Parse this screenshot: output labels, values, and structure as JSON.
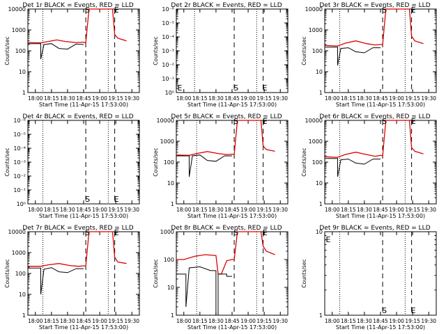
{
  "colors": {
    "events": "#000000",
    "lld": "#dd0000",
    "axis": "#000000",
    "background": "#ffffff"
  },
  "x_tick_labels": [
    "18:00",
    "18:15",
    "18:30",
    "18:45",
    "19:00",
    "19:15",
    "19:30"
  ],
  "x_label": "Start Time (11-Apr-15 17:53:00)",
  "y_label": "Counts/sec",
  "chart_data": [
    {
      "type": "line",
      "title": "Det 1r BLACK = Events, RED = LLD",
      "yscale": "log",
      "ylim": [
        1,
        10000
      ],
      "xlim": [
        "17:53",
        "19:37"
      ],
      "y_tick_labels": [
        "1",
        "10",
        "100",
        "1000",
        "10000"
      ],
      "dotted_lines_at": [
        "18:07",
        "19:08"
      ],
      "dashed_lines": [
        {
          "x": "18:47",
          "label": "S"
        },
        {
          "x": "19:14",
          "label": "E"
        }
      ],
      "series": [
        {
          "color": "red",
          "x": [
            "17:53",
            "18:05",
            "18:10",
            "18:20",
            "18:28",
            "18:38",
            "18:45",
            "18:47",
            "18:50",
            "19:12",
            "19:14",
            "19:17",
            "19:25"
          ],
          "values": [
            250,
            240,
            270,
            330,
            280,
            250,
            260,
            240,
            10000,
            10000,
            600,
            400,
            300
          ]
        },
        {
          "color": "black",
          "x": [
            "17:53",
            "18:05",
            "18:05",
            "18:08",
            "18:08",
            "18:15",
            "18:15",
            "18:22",
            "18:22",
            "18:30",
            "18:30",
            "18:38",
            "18:38",
            "18:45"
          ],
          "values": [
            220,
            220,
            40,
            200,
            200,
            220,
            220,
            130,
            130,
            120,
            120,
            210,
            210,
            200
          ]
        }
      ]
    },
    {
      "type": "line",
      "title": "Det 2r BLACK = Events, RED = LLD",
      "yscale": "log",
      "ylim": [
        1,
        1e-06
      ],
      "xlim": [
        "17:53",
        "19:37"
      ],
      "y_tick_labels": [
        "10⁰",
        "10⁻¹",
        "10⁻²",
        "10⁻³",
        "10⁻⁴",
        "10⁻⁵",
        "10⁻⁶"
      ],
      "dotted_lines_at": [
        "18:10",
        "19:08"
      ],
      "dashed_lines": [
        {
          "x": "18:47",
          "label": "S"
        },
        {
          "x": "19:14",
          "label": "E"
        }
      ],
      "extra_labels": [
        {
          "x": "17:54",
          "label": "E"
        }
      ],
      "series": []
    },
    {
      "type": "line",
      "title": "Det 3r BLACK = Events, RED = LLD",
      "yscale": "log",
      "ylim": [
        1,
        10000
      ],
      "xlim": [
        "17:53",
        "19:37"
      ],
      "y_tick_labels": [
        "1",
        "10",
        "100",
        "1000",
        "10000"
      ],
      "dotted_lines_at": [
        "18:07",
        "19:08"
      ],
      "dashed_lines": [
        {
          "x": "18:47",
          "label": "S"
        },
        {
          "x": "19:14",
          "label": "E"
        }
      ],
      "series": [
        {
          "color": "red",
          "x": [
            "17:53",
            "18:05",
            "18:12",
            "18:22",
            "18:32",
            "18:40",
            "18:45",
            "18:47",
            "18:50",
            "19:12",
            "19:14",
            "19:17",
            "19:25"
          ],
          "values": [
            180,
            170,
            230,
            300,
            220,
            190,
            200,
            200,
            10000,
            10000,
            500,
            300,
            220
          ]
        },
        {
          "color": "black",
          "x": [
            "17:53",
            "18:05",
            "18:05",
            "18:08",
            "18:08",
            "18:15",
            "18:15",
            "18:22",
            "18:22",
            "18:30",
            "18:30",
            "18:38",
            "18:38",
            "18:45"
          ],
          "values": [
            150,
            150,
            20,
            130,
            130,
            140,
            140,
            90,
            90,
            80,
            80,
            140,
            140,
            140
          ]
        }
      ]
    },
    {
      "type": "line",
      "title": "Det 4r BLACK = Events, RED = LLD",
      "yscale": "log",
      "ylim": [
        1,
        1e-06
      ],
      "xlim": [
        "17:53",
        "19:37"
      ],
      "y_tick_labels": [
        "10⁰",
        "10⁻¹",
        "10⁻²",
        "10⁻³",
        "10⁻⁴",
        "10⁻⁵",
        "10⁻⁶"
      ],
      "dotted_lines_at": [
        "18:07",
        "19:08"
      ],
      "dashed_lines": [
        {
          "x": "18:47",
          "label": "S"
        },
        {
          "x": "19:14",
          "label": "E"
        }
      ],
      "series": []
    },
    {
      "type": "line",
      "title": "Det 5r BLACK = Events, RED = LLD",
      "yscale": "log",
      "ylim": [
        1,
        10000
      ],
      "xlim": [
        "17:53",
        "19:37"
      ],
      "y_tick_labels": [
        "1",
        "10",
        "100",
        "1000",
        "10000"
      ],
      "dotted_lines_at": [
        "18:12",
        "19:08"
      ],
      "dashed_lines": [
        {
          "x": "18:47",
          "label": "S"
        },
        {
          "x": "19:14",
          "label": "E"
        }
      ],
      "series": [
        {
          "color": "red",
          "x": [
            "17:53",
            "18:05",
            "18:12",
            "18:22",
            "18:32",
            "18:40",
            "18:45",
            "18:47",
            "18:50",
            "19:12",
            "19:14",
            "19:17",
            "19:25"
          ],
          "values": [
            220,
            210,
            260,
            320,
            260,
            230,
            240,
            240,
            10000,
            10000,
            600,
            400,
            330
          ]
        },
        {
          "color": "black",
          "x": [
            "17:53",
            "18:05",
            "18:05",
            "18:08",
            "18:08",
            "18:15",
            "18:15",
            "18:22",
            "18:22",
            "18:30",
            "18:30",
            "18:38",
            "18:38",
            "18:45"
          ],
          "values": [
            200,
            200,
            20,
            200,
            200,
            220,
            220,
            120,
            120,
            110,
            110,
            200,
            200,
            200
          ]
        }
      ]
    },
    {
      "type": "line",
      "title": "Det 6r BLACK = Events, RED = LLD",
      "yscale": "log",
      "ylim": [
        1,
        10000
      ],
      "xlim": [
        "17:53",
        "19:37"
      ],
      "y_tick_labels": [
        "1",
        "10",
        "100",
        "1000",
        "10000"
      ],
      "dotted_lines_at": [
        "18:07",
        "19:08"
      ],
      "dashed_lines": [
        {
          "x": "18:47",
          "label": "S"
        },
        {
          "x": "19:14",
          "label": "E"
        }
      ],
      "series": [
        {
          "color": "red",
          "x": [
            "17:53",
            "18:05",
            "18:12",
            "18:22",
            "18:32",
            "18:40",
            "18:45",
            "18:47",
            "18:50",
            "19:12",
            "19:14",
            "19:17",
            "19:25"
          ],
          "values": [
            180,
            170,
            230,
            300,
            230,
            190,
            210,
            200,
            10000,
            10000,
            500,
            330,
            250
          ]
        },
        {
          "color": "black",
          "x": [
            "17:53",
            "18:05",
            "18:05",
            "18:08",
            "18:08",
            "18:15",
            "18:15",
            "18:22",
            "18:22",
            "18:30",
            "18:30",
            "18:38",
            "18:38",
            "18:45"
          ],
          "values": [
            150,
            150,
            20,
            130,
            130,
            140,
            140,
            90,
            90,
            80,
            80,
            140,
            140,
            140
          ]
        }
      ]
    },
    {
      "type": "line",
      "title": "Det 7r BLACK = Events, RED = LLD",
      "yscale": "log",
      "ylim": [
        1,
        10000
      ],
      "xlim": [
        "17:53",
        "19:37"
      ],
      "y_tick_labels": [
        "1",
        "10",
        "100",
        "1000",
        "10000"
      ],
      "dotted_lines_at": [
        "18:07",
        "19:08"
      ],
      "dashed_lines": [
        {
          "x": "18:47",
          "label": "S"
        },
        {
          "x": "19:14",
          "label": "E"
        }
      ],
      "series": [
        {
          "color": "red",
          "x": [
            "17:53",
            "18:05",
            "18:12",
            "18:22",
            "18:32",
            "18:40",
            "18:45",
            "18:47",
            "18:50",
            "19:12",
            "19:14",
            "19:17",
            "19:25"
          ],
          "values": [
            220,
            220,
            260,
            300,
            240,
            220,
            230,
            230,
            10000,
            10000,
            600,
            350,
            300
          ]
        },
        {
          "color": "black",
          "x": [
            "17:53",
            "18:05",
            "18:05",
            "18:08",
            "18:08",
            "18:15",
            "18:15",
            "18:22",
            "18:22",
            "18:30",
            "18:30",
            "18:38",
            "18:38",
            "18:45"
          ],
          "values": [
            180,
            180,
            10,
            160,
            160,
            190,
            190,
            120,
            120,
            110,
            110,
            170,
            170,
            170
          ]
        }
      ]
    },
    {
      "type": "line",
      "title": "Det 8r BLACK = Events, RED = LLD",
      "yscale": "log",
      "ylim": [
        1,
        1000
      ],
      "xlim": [
        "17:53",
        "19:37"
      ],
      "y_tick_labels": [
        "1",
        "10",
        "100",
        "1000"
      ],
      "dotted_lines_at": [
        "18:12",
        "19:08"
      ],
      "dashed_lines": [
        {
          "x": "18:47",
          "label": "S"
        },
        {
          "x": "19:14",
          "label": "E"
        }
      ],
      "series": [
        {
          "color": "red",
          "x": [
            "17:53",
            "18:00",
            "18:10",
            "18:20",
            "18:30",
            "18:32",
            "18:35",
            "18:40",
            "18:45",
            "18:47",
            "18:50",
            "19:12",
            "19:14",
            "19:17",
            "19:25"
          ],
          "values": [
            100,
            100,
            130,
            150,
            140,
            30,
            30,
            90,
            100,
            100,
            1000,
            1000,
            300,
            200,
            150
          ]
        },
        {
          "color": "black",
          "x": [
            "17:53",
            "18:02",
            "18:02",
            "18:05",
            "18:05",
            "18:15",
            "18:15",
            "18:25",
            "18:25",
            "18:30",
            "18:30",
            "18:32",
            "18:32",
            "18:40",
            "18:40",
            "18:45"
          ],
          "values": [
            30,
            30,
            2,
            50,
            50,
            55,
            55,
            40,
            40,
            40,
            1,
            1,
            30,
            30,
            25,
            25
          ]
        }
      ]
    },
    {
      "type": "line",
      "title": "Det 9r BLACK = Events, RED = LLD",
      "yscale": "log",
      "ylim": [
        1,
        10
      ],
      "xlim": [
        "17:53",
        "19:37"
      ],
      "y_tick_labels": [
        "1",
        "10"
      ],
      "dotted_lines_at": [
        "18:07",
        "19:08"
      ],
      "dashed_lines": [
        {
          "x": "18:47",
          "label": "S"
        },
        {
          "x": "19:14",
          "label": "E"
        }
      ],
      "extra_labels": [
        {
          "x": "17:54",
          "label": "E"
        }
      ],
      "series": []
    }
  ]
}
